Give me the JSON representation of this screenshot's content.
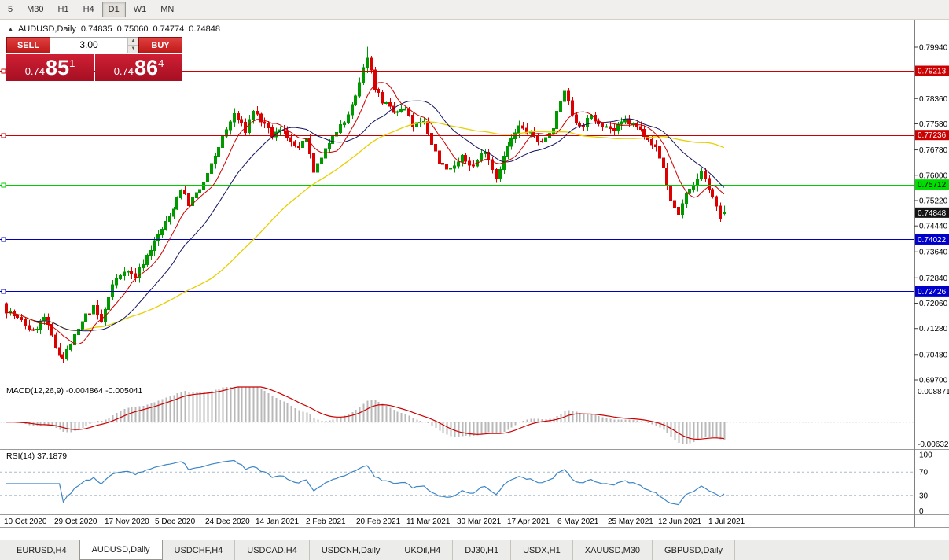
{
  "toolbar": {
    "periods": [
      {
        "label": "5",
        "active": false
      },
      {
        "label": "M30",
        "active": false
      },
      {
        "label": "H1",
        "active": false
      },
      {
        "label": "H4",
        "active": false
      },
      {
        "label": "D1",
        "active": true
      },
      {
        "label": "W1",
        "active": false
      },
      {
        "label": "MN",
        "active": false
      }
    ]
  },
  "header": {
    "symbol": "AUDUSD,Daily",
    "open": "0.74835",
    "high": "0.75060",
    "low": "0.74774",
    "close": "0.74848"
  },
  "trade_panel": {
    "sell_label": "SELL",
    "buy_label": "BUY",
    "volume": "3.00",
    "sell_price": {
      "main": "0.74",
      "big": "85",
      "sup": "1"
    },
    "buy_price": {
      "main": "0.74",
      "big": "86",
      "sup": "4"
    }
  },
  "price_axis": {
    "ticks": [
      "0.79940",
      "0.78360",
      "0.77580",
      "0.76780",
      "0.76000",
      "0.75220",
      "0.74440",
      "0.73640",
      "0.72840",
      "0.72060",
      "0.71280",
      "0.70480",
      "0.69700"
    ],
    "marked": [
      {
        "value": "0.79213",
        "bg": "#cc0000",
        "fg": "#ffffff"
      },
      {
        "value": "0.77236",
        "bg": "#cc0000",
        "fg": "#ffffff"
      },
      {
        "value": "0.75712",
        "bg": "#00dd00",
        "fg": "#000000"
      },
      {
        "value": "0.74848",
        "bg": "#141414",
        "fg": "#ffffff"
      },
      {
        "value": "0.74022",
        "bg": "#0000cc",
        "fg": "#ffffff"
      },
      {
        "value": "0.72426",
        "bg": "#0000cc",
        "fg": "#ffffff"
      }
    ]
  },
  "hlines": [
    {
      "value": 0.79213,
      "color": "#cc0000"
    },
    {
      "value": 0.77236,
      "color": "#cc0000"
    },
    {
      "value": 0.75712,
      "color": "#00cc00"
    },
    {
      "value": 0.74022,
      "color": "#0000bb"
    },
    {
      "value": 0.72426,
      "color": "#0000bb"
    }
  ],
  "indicators": {
    "macd": {
      "label": "MACD(12,26,9) -0.004864 -0.005041",
      "axis_max": "0.008871",
      "axis_min": "-0.006321",
      "histogram_color": "#b8b8b8",
      "signal_color": "#cc0000"
    },
    "rsi": {
      "label": "RSI(14) 37.1879",
      "axis": [
        "100",
        "70",
        "30",
        "0"
      ],
      "levels": [
        70,
        30
      ],
      "line_color": "#3d85c6",
      "level_color": "#a8bccc"
    }
  },
  "date_axis": [
    "10 Oct 2020",
    "29 Oct 2020",
    "17 Nov 2020",
    "5 Dec 2020",
    "24 Dec 2020",
    "14 Jan 2021",
    "2 Feb 2021",
    "20 Feb 2021",
    "11 Mar 2021",
    "30 Mar 2021",
    "17 Apr 2021",
    "6 May 2021",
    "25 May 2021",
    "12 Jun 2021",
    "1 Jul 2021"
  ],
  "tabs": [
    {
      "label": "EURUSD,H4",
      "active": false
    },
    {
      "label": "AUDUSD,Daily",
      "active": true
    },
    {
      "label": "USDCHF,H4",
      "active": false
    },
    {
      "label": "USDCAD,H4",
      "active": false
    },
    {
      "label": "USDCNH,Daily",
      "active": false
    },
    {
      "label": "UKOil,H4",
      "active": false
    },
    {
      "label": "DJ30,H1",
      "active": false
    },
    {
      "label": "USDX,H1",
      "active": false
    },
    {
      "label": "XAUUSD,M30",
      "active": false
    },
    {
      "label": "GBPUSD,Daily",
      "active": false
    }
  ],
  "chart_data": {
    "type": "candlestick",
    "symbol": "AUDUSD",
    "timeframe": "Daily",
    "price_range": [
      0.697,
      0.7994
    ],
    "bar_count": 190,
    "noise_seed": 7,
    "close_keypoints": [
      [
        0,
        0.7185
      ],
      [
        4,
        0.715
      ],
      [
        7,
        0.7118
      ],
      [
        10,
        0.7162
      ],
      [
        13,
        0.7072
      ],
      [
        15,
        0.7038
      ],
      [
        18,
        0.7102
      ],
      [
        21,
        0.7168
      ],
      [
        23,
        0.7192
      ],
      [
        25,
        0.7148
      ],
      [
        28,
        0.7262
      ],
      [
        31,
        0.731
      ],
      [
        34,
        0.7288
      ],
      [
        37,
        0.7352
      ],
      [
        40,
        0.7415
      ],
      [
        43,
        0.7472
      ],
      [
        46,
        0.756
      ],
      [
        48,
        0.7512
      ],
      [
        51,
        0.7555
      ],
      [
        53,
        0.76
      ],
      [
        56,
        0.769
      ],
      [
        60,
        0.7788
      ],
      [
        63,
        0.7738
      ],
      [
        65,
        0.78
      ],
      [
        68,
        0.7752
      ],
      [
        70,
        0.7722
      ],
      [
        73,
        0.7742
      ],
      [
        76,
        0.7682
      ],
      [
        79,
        0.7705
      ],
      [
        81,
        0.7612
      ],
      [
        83,
        0.7648
      ],
      [
        86,
        0.7728
      ],
      [
        89,
        0.7762
      ],
      [
        92,
        0.7838
      ],
      [
        95,
        0.7968
      ],
      [
        97,
        0.7872
      ],
      [
        99,
        0.7828
      ],
      [
        102,
        0.7792
      ],
      [
        105,
        0.7802
      ],
      [
        107,
        0.7752
      ],
      [
        110,
        0.7762
      ],
      [
        112,
        0.77
      ],
      [
        114,
        0.7642
      ],
      [
        117,
        0.7618
      ],
      [
        120,
        0.7652
      ],
      [
        123,
        0.7628
      ],
      [
        126,
        0.768
      ],
      [
        129,
        0.7592
      ],
      [
        132,
        0.7688
      ],
      [
        135,
        0.7748
      ],
      [
        138,
        0.7728
      ],
      [
        141,
        0.7702
      ],
      [
        144,
        0.7752
      ],
      [
        147,
        0.7862
      ],
      [
        149,
        0.7788
      ],
      [
        151,
        0.7748
      ],
      [
        154,
        0.7778
      ],
      [
        157,
        0.7758
      ],
      [
        160,
        0.7738
      ],
      [
        163,
        0.7768
      ],
      [
        166,
        0.7748
      ],
      [
        169,
        0.7718
      ],
      [
        171,
        0.7682
      ],
      [
        173,
        0.7622
      ],
      [
        175,
        0.7522
      ],
      [
        177,
        0.7482
      ],
      [
        179,
        0.7538
      ],
      [
        181,
        0.7562
      ],
      [
        183,
        0.7618
      ],
      [
        185,
        0.7558
      ],
      [
        187,
        0.7498
      ],
      [
        188,
        0.7468
      ],
      [
        189,
        0.74848
      ]
    ],
    "spike_high": {
      "index": 95,
      "price": 0.7995
    },
    "ma_periods": {
      "fast": 8,
      "mid": 20,
      "slow": 55
    },
    "ma_colors": {
      "fast": "#cc0000",
      "mid": "#14145f",
      "slow": "#e6cf00"
    },
    "candle_colors": {
      "up": "#009900",
      "down": "#dd0000"
    }
  }
}
